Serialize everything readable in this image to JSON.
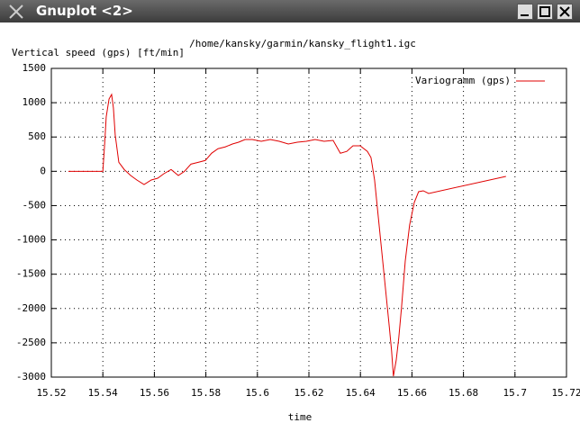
{
  "window": {
    "title": "Gnuplot <2>"
  },
  "chart_data": {
    "type": "line",
    "title": "/home/kansky/garmin/kansky_flight1.igc",
    "y_label": "Vertical speed (gps) [ft/min]",
    "x_label": "time",
    "x": [
      15.5266,
      15.54,
      15.5407,
      15.5413,
      15.5424,
      15.5434,
      15.5441,
      15.5448,
      15.5462,
      15.5483,
      15.5508,
      15.5532,
      15.556,
      15.5588,
      15.5613,
      15.5637,
      15.5665,
      15.5693,
      15.5717,
      15.5742,
      15.577,
      15.5798,
      15.5822,
      15.5847,
      15.5875,
      15.5903,
      15.5927,
      15.5952,
      15.598,
      15.6015,
      15.605,
      15.6085,
      15.612,
      15.6155,
      15.619,
      15.6224,
      15.6259,
      15.6294,
      15.6322,
      15.6347,
      15.6371,
      15.6399,
      15.6427,
      15.6441,
      15.6455,
      15.6469,
      15.6483,
      15.6497,
      15.6511,
      15.6521,
      15.6528,
      15.6539,
      15.6549,
      15.656,
      15.6574,
      15.6591,
      15.6609,
      15.6626,
      15.6644,
      15.6665,
      15.6965
    ],
    "series": [
      {
        "name": "Variogramm (gps)",
        "color": "#e00000",
        "values": [
          0,
          0,
          398,
          792,
          1054,
          1120,
          923,
          529,
          131,
          26,
          -61,
          -127,
          -193,
          -127,
          -101,
          -35,
          26,
          -61,
          0,
          105,
          131,
          158,
          263,
          329,
          355,
          398,
          424,
          463,
          463,
          437,
          463,
          437,
          398,
          424,
          437,
          463,
          437,
          450,
          263,
          290,
          372,
          372,
          290,
          201,
          -127,
          -652,
          -1176,
          -1701,
          -2226,
          -2619,
          -2987,
          -2751,
          -2423,
          -1964,
          -1308,
          -783,
          -455,
          -297,
          -284,
          -323,
          -74
        ]
      }
    ],
    "xlim": [
      15.52,
      15.72
    ],
    "ylim": [
      -3000,
      1500
    ],
    "xticks": [
      15.52,
      15.54,
      15.56,
      15.58,
      15.6,
      15.62,
      15.64,
      15.66,
      15.68,
      15.7,
      15.72
    ],
    "yticks": [
      -3000,
      -2500,
      -2000,
      -1500,
      -1000,
      -500,
      0,
      500,
      1000,
      1500
    ],
    "grid": true,
    "legend": "top-right"
  }
}
